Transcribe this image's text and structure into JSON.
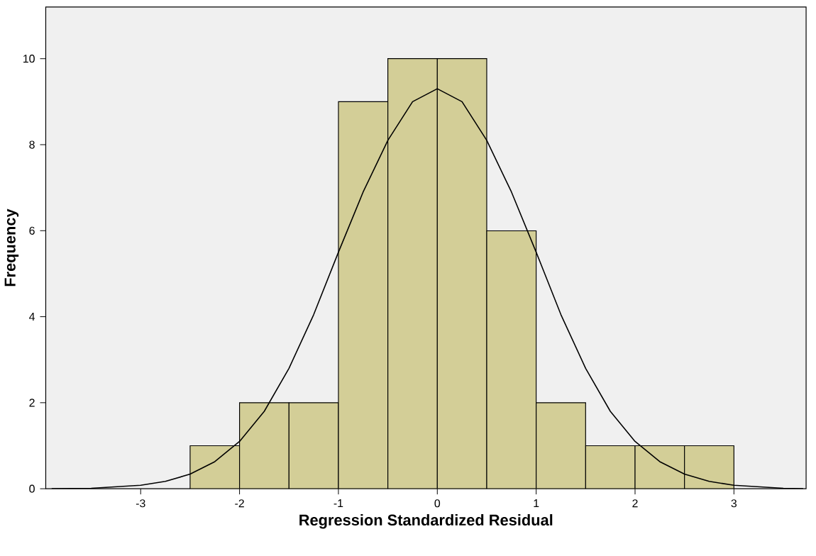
{
  "chart_data": {
    "type": "histogram",
    "xlabel": "Regression Standardized Residual",
    "ylabel": "Frequency",
    "bins": [
      -2.5,
      -2.0,
      -1.5,
      -1.0,
      -0.5,
      0.0,
      0.5,
      1.0,
      1.5,
      2.0,
      2.5,
      3.0
    ],
    "values": [
      1,
      2,
      2,
      9,
      10,
      10,
      6,
      2,
      1,
      1,
      1
    ],
    "color": "#d3ce97",
    "series": [
      {
        "type": "line",
        "color": "#000000",
        "x": [
          -3.9,
          -3.5,
          -3.0,
          -2.75,
          -2.5,
          -2.25,
          -2.0,
          -1.75,
          -1.5,
          -1.25,
          -1.0,
          -0.75,
          -0.5,
          -0.25,
          0.0,
          0.25,
          0.5,
          0.75,
          1.0,
          1.25,
          1.5,
          1.75,
          2.0,
          2.25,
          2.5,
          2.75,
          3.0,
          3.5,
          3.7
        ],
        "values": [
          0.0,
          0.01,
          0.08,
          0.17,
          0.34,
          0.63,
          1.1,
          1.8,
          2.8,
          4.05,
          5.5,
          6.9,
          8.1,
          9.0,
          9.3,
          9.0,
          8.1,
          6.9,
          5.5,
          4.05,
          2.8,
          1.8,
          1.1,
          0.63,
          0.34,
          0.17,
          0.08,
          0.01,
          0.0
        ]
      }
    ],
    "xlim": [
      -3.96,
      3.73
    ],
    "ylim": [
      0,
      11.2
    ],
    "xticks": [
      -3,
      -2,
      -1,
      0,
      1,
      2,
      3
    ],
    "yticks": [
      0,
      2,
      4,
      6,
      8,
      10
    ],
    "grid": false
  }
}
